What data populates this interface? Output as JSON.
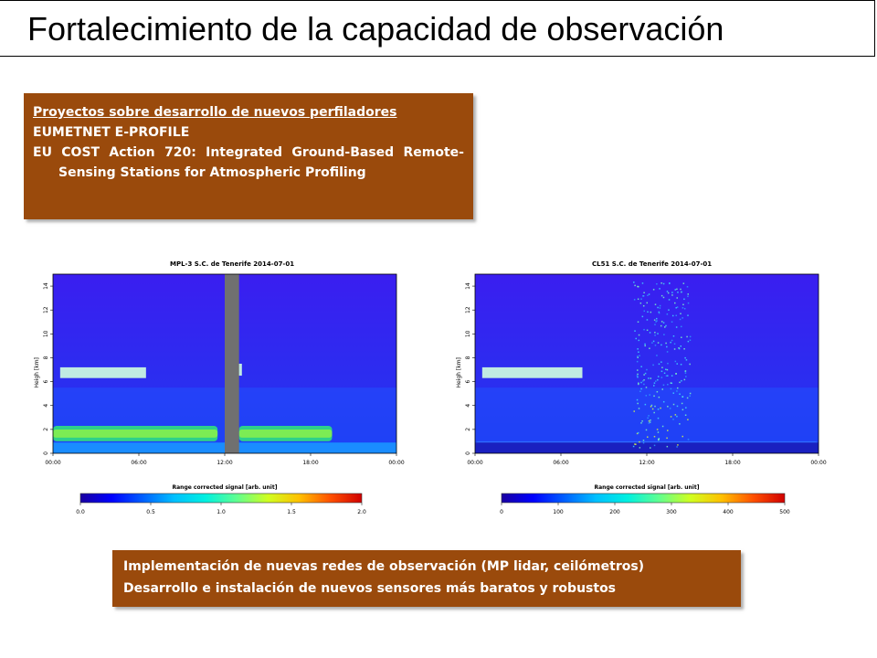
{
  "slide": {
    "title": "Fortalecimiento de la capacidad de observación",
    "box1": {
      "line1": "Proyectos sobre desarrollo de nuevos perfiladores",
      "line2": "EUMETNET E-PROFILE",
      "line3": "EU COST Action 720: Integrated Ground-Based Remote-Sensing Stations for Atmospheric Profiling"
    },
    "box2": {
      "line1": "Implementación de nuevas redes de observación (MP lidar, ceilómetros)",
      "line2": "Desarrollo e instalación de nuevos sensores más baratos y robustos"
    },
    "colors": {
      "box": "#9a4a0c"
    }
  },
  "chart_data": [
    {
      "type": "heatmap",
      "title": "MPL-3 S.C. de Tenerife 2014-07-01",
      "ylabel": "Heigh [km]",
      "x_ticks": [
        "00:00",
        "06:00",
        "12:00",
        "18:00",
        "00:00"
      ],
      "y_ticks": [
        "0",
        "2",
        "4",
        "6",
        "8",
        "10",
        "12",
        "14"
      ],
      "ylim": [
        0,
        15
      ],
      "colorbar_label": "Range corrected signal [arb. unit]",
      "colorbar_ticks": [
        "0.0",
        "0.5",
        "1.0",
        "1.5",
        "2.0"
      ],
      "clouds": [
        {
          "t0": 0.5,
          "t1": 6.5,
          "h0": 6.3,
          "h1": 7.2
        },
        {
          "t0": 12.5,
          "t1": 13.2,
          "h0": 6.5,
          "h1": 7.5
        }
      ],
      "boundary_layer": [
        {
          "t0": 0,
          "t1": 11.5,
          "h0": 1.0,
          "h1": 2.3
        },
        {
          "t0": 13.0,
          "t1": 19.5,
          "h0": 1.0,
          "h1": 2.3
        }
      ],
      "gap": {
        "t0": 12.0,
        "t1": 13.0
      }
    },
    {
      "type": "heatmap",
      "title": "CL51 S.C. de Tenerife 2014-07-01",
      "ylabel": "Heigh [km]",
      "x_ticks": [
        "00:00",
        "06:00",
        "12:00",
        "18:00",
        "00:00"
      ],
      "y_ticks": [
        "0",
        "2",
        "4",
        "6",
        "8",
        "10",
        "12",
        "14"
      ],
      "ylim": [
        0,
        15
      ],
      "colorbar_label": "Range corrected signal [arb. unit]",
      "colorbar_ticks": [
        "0",
        "100",
        "200",
        "300",
        "400",
        "500"
      ],
      "clouds": [
        {
          "t0": 0.5,
          "t1": 7.5,
          "h0": 6.3,
          "h1": 7.2
        }
      ],
      "boundary_layer": [
        {
          "t0": 0,
          "t1": 24,
          "h0": 0.5,
          "h1": 1.0
        }
      ],
      "noise_column": {
        "t0": 11.0,
        "t1": 15.0
      }
    }
  ]
}
